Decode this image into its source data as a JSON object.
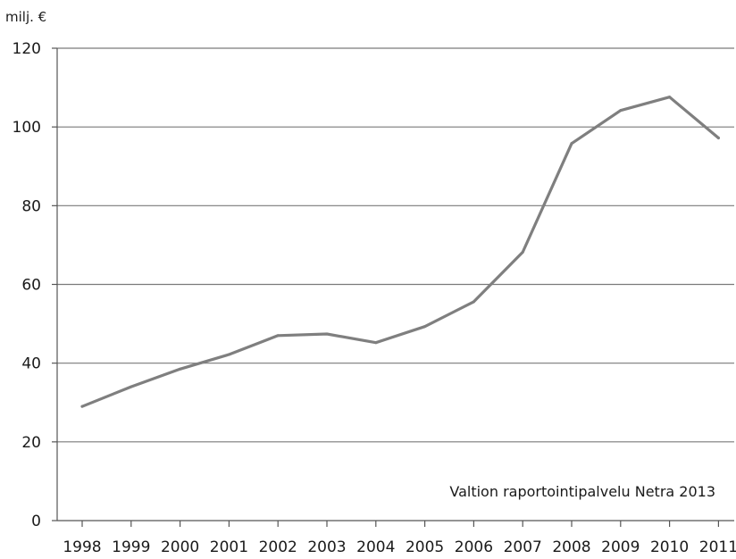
{
  "chart_data": {
    "type": "line",
    "title": "",
    "xlabel": "",
    "ylabel": "milj. €",
    "x": [
      "1998",
      "1999",
      "2000",
      "2001",
      "2002",
      "2003",
      "2004",
      "2005",
      "2006",
      "2007",
      "2008",
      "2009",
      "2010",
      "2011"
    ],
    "series": [
      {
        "values": [
          29,
          34,
          38.5,
          42.2,
          47,
          47.4,
          45.2,
          49.3,
          55.6,
          68.2,
          95.8,
          104.2,
          107.6,
          97.2
        ]
      }
    ],
    "ylim": [
      0,
      120
    ],
    "yticks": [
      0,
      20,
      40,
      60,
      80,
      100,
      120
    ],
    "grid": true,
    "annotation": "Valtion raportointipalvelu Netra 2013",
    "line_color": "#7f7f7f",
    "grid_color": "#7a7a7a"
  }
}
